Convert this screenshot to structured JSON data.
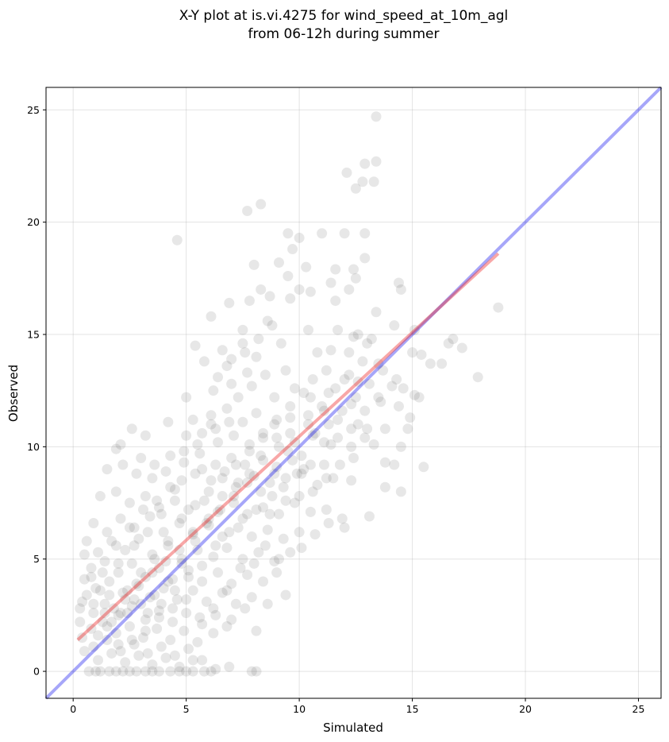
{
  "chart_data": {
    "type": "scatter",
    "title_line1": "X-Y plot at is.vi.4275 for wind_speed_at_10m_agl",
    "title_line2": "from 06-12h during summer",
    "xlabel": "Simulated",
    "ylabel": "Observed",
    "xlim": [
      -1.2,
      26.0
    ],
    "ylim": [
      -1.2,
      26.0
    ],
    "xticks": [
      0,
      5,
      10,
      15,
      20,
      25
    ],
    "yticks": [
      0,
      5,
      10,
      15,
      20,
      25
    ],
    "grid": true,
    "point_color": "#555555",
    "identity_line": {
      "x": [
        -1.2,
        26.0
      ],
      "y": [
        -1.2,
        26.0
      ],
      "color": "#0000ee"
    },
    "fit_line": {
      "x": [
        0.2,
        18.8
      ],
      "y": [
        1.4,
        18.6
      ],
      "color": "#ee2222"
    },
    "points": [
      [
        13.4,
        24.7
      ],
      [
        13.4,
        22.7
      ],
      [
        12.9,
        22.6
      ],
      [
        12.1,
        22.2
      ],
      [
        12.8,
        21.8
      ],
      [
        13.3,
        21.8
      ],
      [
        12.5,
        21.5
      ],
      [
        8.3,
        20.8
      ],
      [
        7.7,
        20.5
      ],
      [
        4.6,
        19.2
      ],
      [
        9.5,
        19.5
      ],
      [
        10.0,
        19.3
      ],
      [
        11.0,
        19.5
      ],
      [
        12.0,
        19.5
      ],
      [
        12.9,
        19.5
      ],
      [
        9.7,
        18.8
      ],
      [
        12.9,
        18.4
      ],
      [
        8.0,
        18.1
      ],
      [
        9.1,
        18.2
      ],
      [
        10.3,
        18.0
      ],
      [
        11.6,
        17.9
      ],
      [
        12.4,
        17.9
      ],
      [
        8.3,
        17.0
      ],
      [
        9.5,
        17.6
      ],
      [
        11.4,
        17.3
      ],
      [
        12.2,
        17.0
      ],
      [
        14.4,
        17.3
      ],
      [
        14.5,
        17.0
      ],
      [
        7.8,
        16.5
      ],
      [
        6.9,
        16.4
      ],
      [
        8.7,
        16.7
      ],
      [
        9.6,
        16.6
      ],
      [
        10.0,
        17.0
      ],
      [
        10.5,
        16.9
      ],
      [
        11.6,
        16.5
      ],
      [
        12.5,
        17.5
      ],
      [
        13.4,
        16.0
      ],
      [
        18.8,
        16.2
      ],
      [
        6.1,
        15.8
      ],
      [
        7.5,
        15.2
      ],
      [
        8.6,
        15.6
      ],
      [
        10.4,
        15.2
      ],
      [
        11.7,
        15.2
      ],
      [
        12.6,
        15.0
      ],
      [
        15.1,
        15.2
      ],
      [
        14.2,
        15.4
      ],
      [
        16.6,
        14.6
      ],
      [
        16.8,
        14.8
      ],
      [
        17.2,
        14.4
      ],
      [
        5.4,
        14.5
      ],
      [
        6.6,
        14.3
      ],
      [
        7.5,
        14.6
      ],
      [
        8.1,
        14.0
      ],
      [
        9.2,
        14.6
      ],
      [
        10.8,
        14.2
      ],
      [
        11.4,
        14.3
      ],
      [
        12.2,
        14.2
      ],
      [
        13.0,
        14.6
      ],
      [
        13.5,
        13.7
      ],
      [
        15.4,
        14.1
      ],
      [
        15.8,
        13.7
      ],
      [
        16.3,
        13.7
      ],
      [
        17.9,
        13.1
      ],
      [
        5.8,
        13.8
      ],
      [
        6.8,
        13.6
      ],
      [
        7.7,
        13.3
      ],
      [
        8.5,
        13.2
      ],
      [
        9.4,
        13.4
      ],
      [
        10.6,
        13.0
      ],
      [
        11.2,
        13.4
      ],
      [
        12.0,
        13.0
      ],
      [
        12.6,
        12.9
      ],
      [
        14.1,
        12.7
      ],
      [
        14.6,
        12.6
      ],
      [
        15.1,
        12.3
      ],
      [
        15.3,
        12.2
      ],
      [
        5.0,
        12.2
      ],
      [
        6.2,
        12.5
      ],
      [
        7.0,
        12.8
      ],
      [
        7.9,
        12.7
      ],
      [
        8.9,
        12.2
      ],
      [
        9.8,
        12.6
      ],
      [
        10.5,
        12.2
      ],
      [
        11.3,
        12.4
      ],
      [
        12.3,
        11.9
      ],
      [
        13.6,
        12.0
      ],
      [
        14.4,
        11.8
      ],
      [
        14.9,
        11.3
      ],
      [
        5.3,
        11.2
      ],
      [
        6.1,
        11.4
      ],
      [
        6.8,
        11.7
      ],
      [
        7.5,
        11.1
      ],
      [
        8.1,
        11.5
      ],
      [
        8.9,
        11.0
      ],
      [
        9.6,
        11.3
      ],
      [
        10.4,
        11.0
      ],
      [
        11.1,
        11.6
      ],
      [
        11.7,
        11.2
      ],
      [
        12.6,
        11.0
      ],
      [
        13.0,
        10.8
      ],
      [
        13.8,
        10.8
      ],
      [
        14.8,
        10.8
      ],
      [
        4.2,
        11.1
      ],
      [
        2.6,
        10.8
      ],
      [
        3.2,
        10.5
      ],
      [
        5.0,
        10.5
      ],
      [
        5.7,
        10.6
      ],
      [
        6.4,
        10.2
      ],
      [
        7.1,
        10.5
      ],
      [
        7.8,
        10.1
      ],
      [
        8.4,
        10.4
      ],
      [
        9.1,
        10.0
      ],
      [
        9.8,
        10.2
      ],
      [
        10.6,
        10.5
      ],
      [
        11.4,
        10.1
      ],
      [
        12.3,
        10.0
      ],
      [
        12.9,
        10.4
      ],
      [
        13.3,
        10.1
      ],
      [
        14.5,
        10.0
      ],
      [
        15.5,
        9.1
      ],
      [
        2.1,
        10.1
      ],
      [
        1.9,
        9.9
      ],
      [
        3.0,
        9.5
      ],
      [
        3.6,
        9.2
      ],
      [
        4.3,
        9.6
      ],
      [
        4.9,
        9.3
      ],
      [
        5.6,
        9.7
      ],
      [
        6.3,
        9.2
      ],
      [
        7.0,
        9.5
      ],
      [
        7.6,
        9.2
      ],
      [
        8.3,
        9.6
      ],
      [
        9.0,
        9.1
      ],
      [
        9.7,
        9.4
      ],
      [
        10.2,
        9.0
      ],
      [
        11.1,
        9.2
      ],
      [
        11.8,
        9.2
      ],
      [
        12.4,
        9.5
      ],
      [
        13.8,
        9.3
      ],
      [
        14.2,
        9.2
      ],
      [
        1.5,
        9.0
      ],
      [
        2.2,
        9.2
      ],
      [
        2.8,
        8.8
      ],
      [
        3.5,
        8.6
      ],
      [
        4.1,
        8.9
      ],
      [
        4.8,
        8.5
      ],
      [
        5.4,
        8.8
      ],
      [
        6.1,
        8.5
      ],
      [
        6.7,
        8.9
      ],
      [
        7.3,
        8.4
      ],
      [
        8.0,
        8.7
      ],
      [
        8.7,
        8.4
      ],
      [
        9.4,
        8.6
      ],
      [
        10.1,
        8.8
      ],
      [
        10.8,
        8.3
      ],
      [
        11.5,
        8.6
      ],
      [
        12.3,
        8.5
      ],
      [
        13.8,
        8.2
      ],
      [
        14.5,
        8.0
      ],
      [
        1.2,
        7.8
      ],
      [
        1.9,
        8.0
      ],
      [
        2.5,
        7.5
      ],
      [
        3.2,
        7.8
      ],
      [
        3.8,
        7.3
      ],
      [
        4.5,
        7.6
      ],
      [
        5.1,
        7.2
      ],
      [
        5.8,
        7.6
      ],
      [
        6.4,
        7.1
      ],
      [
        7.1,
        7.5
      ],
      [
        7.7,
        7.0
      ],
      [
        8.4,
        7.3
      ],
      [
        9.1,
        7.0
      ],
      [
        9.8,
        7.5
      ],
      [
        10.5,
        7.1
      ],
      [
        11.2,
        7.2
      ],
      [
        11.9,
        6.8
      ],
      [
        13.1,
        6.9
      ],
      [
        0.9,
        6.6
      ],
      [
        1.5,
        6.2
      ],
      [
        2.1,
        6.8
      ],
      [
        2.7,
        6.4
      ],
      [
        3.4,
        6.9
      ],
      [
        4.0,
        6.2
      ],
      [
        4.7,
        6.6
      ],
      [
        5.3,
        6.1
      ],
      [
        6.0,
        6.5
      ],
      [
        6.6,
        6.0
      ],
      [
        7.3,
        6.4
      ],
      [
        7.9,
        6.0
      ],
      [
        8.6,
        6.3
      ],
      [
        9.3,
        5.9
      ],
      [
        10.0,
        6.2
      ],
      [
        10.7,
        6.1
      ],
      [
        11.3,
        6.6
      ],
      [
        12.0,
        6.4
      ],
      [
        0.6,
        5.8
      ],
      [
        1.1,
        5.3
      ],
      [
        1.7,
        5.8
      ],
      [
        2.3,
        5.4
      ],
      [
        2.9,
        5.9
      ],
      [
        3.5,
        5.2
      ],
      [
        4.2,
        5.6
      ],
      [
        4.8,
        5.0
      ],
      [
        5.5,
        5.4
      ],
      [
        6.2,
        5.1
      ],
      [
        6.8,
        5.5
      ],
      [
        7.5,
        5.0
      ],
      [
        8.2,
        5.3
      ],
      [
        8.9,
        4.9
      ],
      [
        9.6,
        5.3
      ],
      [
        10.1,
        5.5
      ],
      [
        0.5,
        5.2
      ],
      [
        0.8,
        4.6
      ],
      [
        1.4,
        4.9
      ],
      [
        2.0,
        4.4
      ],
      [
        2.6,
        4.8
      ],
      [
        3.2,
        4.2
      ],
      [
        3.8,
        4.6
      ],
      [
        4.4,
        4.1
      ],
      [
        5.1,
        4.5
      ],
      [
        5.7,
        4.0
      ],
      [
        6.4,
        4.4
      ],
      [
        7.0,
        3.9
      ],
      [
        7.7,
        4.3
      ],
      [
        8.4,
        4.0
      ],
      [
        9.0,
        4.4
      ],
      [
        0.5,
        4.1
      ],
      [
        1.0,
        3.7
      ],
      [
        1.6,
        4.0
      ],
      [
        2.2,
        3.5
      ],
      [
        2.8,
        3.9
      ],
      [
        3.4,
        3.3
      ],
      [
        4.0,
        3.7
      ],
      [
        4.6,
        3.2
      ],
      [
        5.3,
        3.6
      ],
      [
        5.9,
        3.1
      ],
      [
        6.6,
        3.5
      ],
      [
        7.2,
        3.0
      ],
      [
        7.9,
        3.3
      ],
      [
        8.6,
        3.0
      ],
      [
        9.4,
        3.4
      ],
      [
        0.4,
        3.1
      ],
      [
        0.9,
        2.6
      ],
      [
        1.4,
        3.0
      ],
      [
        2.0,
        2.5
      ],
      [
        2.6,
        2.9
      ],
      [
        3.2,
        2.3
      ],
      [
        3.8,
        2.7
      ],
      [
        4.4,
        2.2
      ],
      [
        5.0,
        2.6
      ],
      [
        5.7,
        2.1
      ],
      [
        6.3,
        2.5
      ],
      [
        7.0,
        2.3
      ],
      [
        7.6,
        2.8
      ],
      [
        8.1,
        1.8
      ],
      [
        0.3,
        2.8
      ],
      [
        0.3,
        2.2
      ],
      [
        0.8,
        1.9
      ],
      [
        1.3,
        2.2
      ],
      [
        1.9,
        1.7
      ],
      [
        2.5,
        2.0
      ],
      [
        3.1,
        1.5
      ],
      [
        3.7,
        1.9
      ],
      [
        4.3,
        1.4
      ],
      [
        4.9,
        1.8
      ],
      [
        5.5,
        1.3
      ],
      [
        6.2,
        1.7
      ],
      [
        6.8,
        2.0
      ],
      [
        0.4,
        1.5
      ],
      [
        0.9,
        1.1
      ],
      [
        1.5,
        1.4
      ],
      [
        2.1,
        0.9
      ],
      [
        2.7,
        1.2
      ],
      [
        3.3,
        0.8
      ],
      [
        3.9,
        1.1
      ],
      [
        4.5,
        0.7
      ],
      [
        5.1,
        1.0
      ],
      [
        5.7,
        0.5
      ],
      [
        6.3,
        0.1
      ],
      [
        6.9,
        0.2
      ],
      [
        0.5,
        0.9
      ],
      [
        1.1,
        0.5
      ],
      [
        1.7,
        0.8
      ],
      [
        2.3,
        0.4
      ],
      [
        2.9,
        0.7
      ],
      [
        3.5,
        0.3
      ],
      [
        4.1,
        0.6
      ],
      [
        4.7,
        0.2
      ],
      [
        5.3,
        0.5
      ],
      [
        5.8,
        0.0
      ],
      [
        0.7,
        0.0
      ],
      [
        1.0,
        0.0
      ],
      [
        1.2,
        0.0
      ],
      [
        1.6,
        0.0
      ],
      [
        1.9,
        0.0
      ],
      [
        2.2,
        0.0
      ],
      [
        2.5,
        0.0
      ],
      [
        2.8,
        0.0
      ],
      [
        3.2,
        0.0
      ],
      [
        3.5,
        0.0
      ],
      [
        3.8,
        0.0
      ],
      [
        4.3,
        0.0
      ],
      [
        4.7,
        0.0
      ],
      [
        5.0,
        0.0
      ],
      [
        5.3,
        0.0
      ],
      [
        7.9,
        0.0
      ],
      [
        8.1,
        0.0
      ],
      [
        6.1,
        0.0
      ],
      [
        1.4,
        2.6
      ],
      [
        2.4,
        3.6
      ],
      [
        3.0,
        4.4
      ],
      [
        3.6,
        5.0
      ],
      [
        4.2,
        5.8
      ],
      [
        4.8,
        6.8
      ],
      [
        5.4,
        7.4
      ],
      [
        6.0,
        8.0
      ],
      [
        6.6,
        8.6
      ],
      [
        7.2,
        9.2
      ],
      [
        7.8,
        9.8
      ],
      [
        8.4,
        10.6
      ],
      [
        9.0,
        11.2
      ],
      [
        9.6,
        11.8
      ],
      [
        10.2,
        12.4
      ],
      [
        6.3,
        10.8
      ],
      [
        6.9,
        11.1
      ],
      [
        5.7,
        9.0
      ],
      [
        4.5,
        8.1
      ],
      [
        3.9,
        7.0
      ],
      [
        3.3,
        6.2
      ],
      [
        2.7,
        5.6
      ],
      [
        2.0,
        4.8
      ],
      [
        1.6,
        3.4
      ],
      [
        2.4,
        2.6
      ],
      [
        3.0,
        3.0
      ],
      [
        3.6,
        3.4
      ],
      [
        4.2,
        4.0
      ],
      [
        4.8,
        4.8
      ],
      [
        5.4,
        5.8
      ],
      [
        6.0,
        6.8
      ],
      [
        6.6,
        7.8
      ],
      [
        7.2,
        8.2
      ],
      [
        7.8,
        8.8
      ],
      [
        8.4,
        9.4
      ],
      [
        9.0,
        10.4
      ],
      [
        9.6,
        10.6
      ],
      [
        10.4,
        11.4
      ],
      [
        11.0,
        11.8
      ],
      [
        11.6,
        12.6
      ],
      [
        12.2,
        13.2
      ],
      [
        12.8,
        13.8
      ],
      [
        13.2,
        14.8
      ],
      [
        12.4,
        14.9
      ],
      [
        8.8,
        7.8
      ],
      [
        9.4,
        7.6
      ],
      [
        10.0,
        7.8
      ],
      [
        10.6,
        8.0
      ],
      [
        11.2,
        8.6
      ],
      [
        8.5,
        5.6
      ],
      [
        9.1,
        5.0
      ],
      [
        8.0,
        4.8
      ],
      [
        7.4,
        4.6
      ],
      [
        6.8,
        3.6
      ],
      [
        6.2,
        2.8
      ],
      [
        5.6,
        2.4
      ],
      [
        5.0,
        3.2
      ],
      [
        4.4,
        2.8
      ],
      [
        3.8,
        2.4
      ],
      [
        3.2,
        1.8
      ],
      [
        2.6,
        1.4
      ],
      [
        2.0,
        1.2
      ],
      [
        1.8,
        2.8
      ],
      [
        1.2,
        3.6
      ],
      [
        0.8,
        4.2
      ],
      [
        0.6,
        3.4
      ],
      [
        1.1,
        1.6
      ],
      [
        1.7,
        2.2
      ],
      [
        2.3,
        3.2
      ],
      [
        2.9,
        3.8
      ],
      [
        3.5,
        4.4
      ],
      [
        4.1,
        4.9
      ],
      [
        4.7,
        5.4
      ],
      [
        5.3,
        6.2
      ],
      [
        5.9,
        6.6
      ],
      [
        6.5,
        7.2
      ],
      [
        7.1,
        7.8
      ],
      [
        7.7,
        8.4
      ],
      [
        8.3,
        8.0
      ],
      [
        8.9,
        8.8
      ],
      [
        9.5,
        9.8
      ],
      [
        10.1,
        9.6
      ],
      [
        10.7,
        10.6
      ],
      [
        11.3,
        11.0
      ],
      [
        11.9,
        11.6
      ],
      [
        12.5,
        12.2
      ],
      [
        13.1,
        12.8
      ],
      [
        13.7,
        13.4
      ],
      [
        14.3,
        13.0
      ],
      [
        15.0,
        14.2
      ],
      [
        6.4,
        13.1
      ],
      [
        7.0,
        13.9
      ],
      [
        7.6,
        14.2
      ],
      [
        8.2,
        14.8
      ],
      [
        8.8,
        15.4
      ],
      [
        7.3,
        12.2
      ],
      [
        6.1,
        11.0
      ],
      [
        5.5,
        10.1
      ],
      [
        4.9,
        9.8
      ],
      [
        4.3,
        8.2
      ],
      [
        3.7,
        7.6
      ],
      [
        3.1,
        7.2
      ],
      [
        2.5,
        6.4
      ],
      [
        1.9,
        5.6
      ],
      [
        1.3,
        4.4
      ],
      [
        0.9,
        3.0
      ],
      [
        1.5,
        2.0
      ],
      [
        2.1,
        2.6
      ],
      [
        2.7,
        3.2
      ],
      [
        3.3,
        2.6
      ],
      [
        3.9,
        3.0
      ],
      [
        4.5,
        3.6
      ],
      [
        5.1,
        4.2
      ],
      [
        5.7,
        4.7
      ],
      [
        6.3,
        5.6
      ],
      [
        6.9,
        6.2
      ],
      [
        7.5,
        6.8
      ],
      [
        8.1,
        7.2
      ],
      [
        8.7,
        7.0
      ],
      [
        9.3,
        8.2
      ],
      [
        9.9,
        8.8
      ],
      [
        10.5,
        9.2
      ],
      [
        11.1,
        10.2
      ],
      [
        11.7,
        10.4
      ],
      [
        12.3,
        10.8
      ],
      [
        12.9,
        11.6
      ],
      [
        13.5,
        12.2
      ]
    ]
  }
}
